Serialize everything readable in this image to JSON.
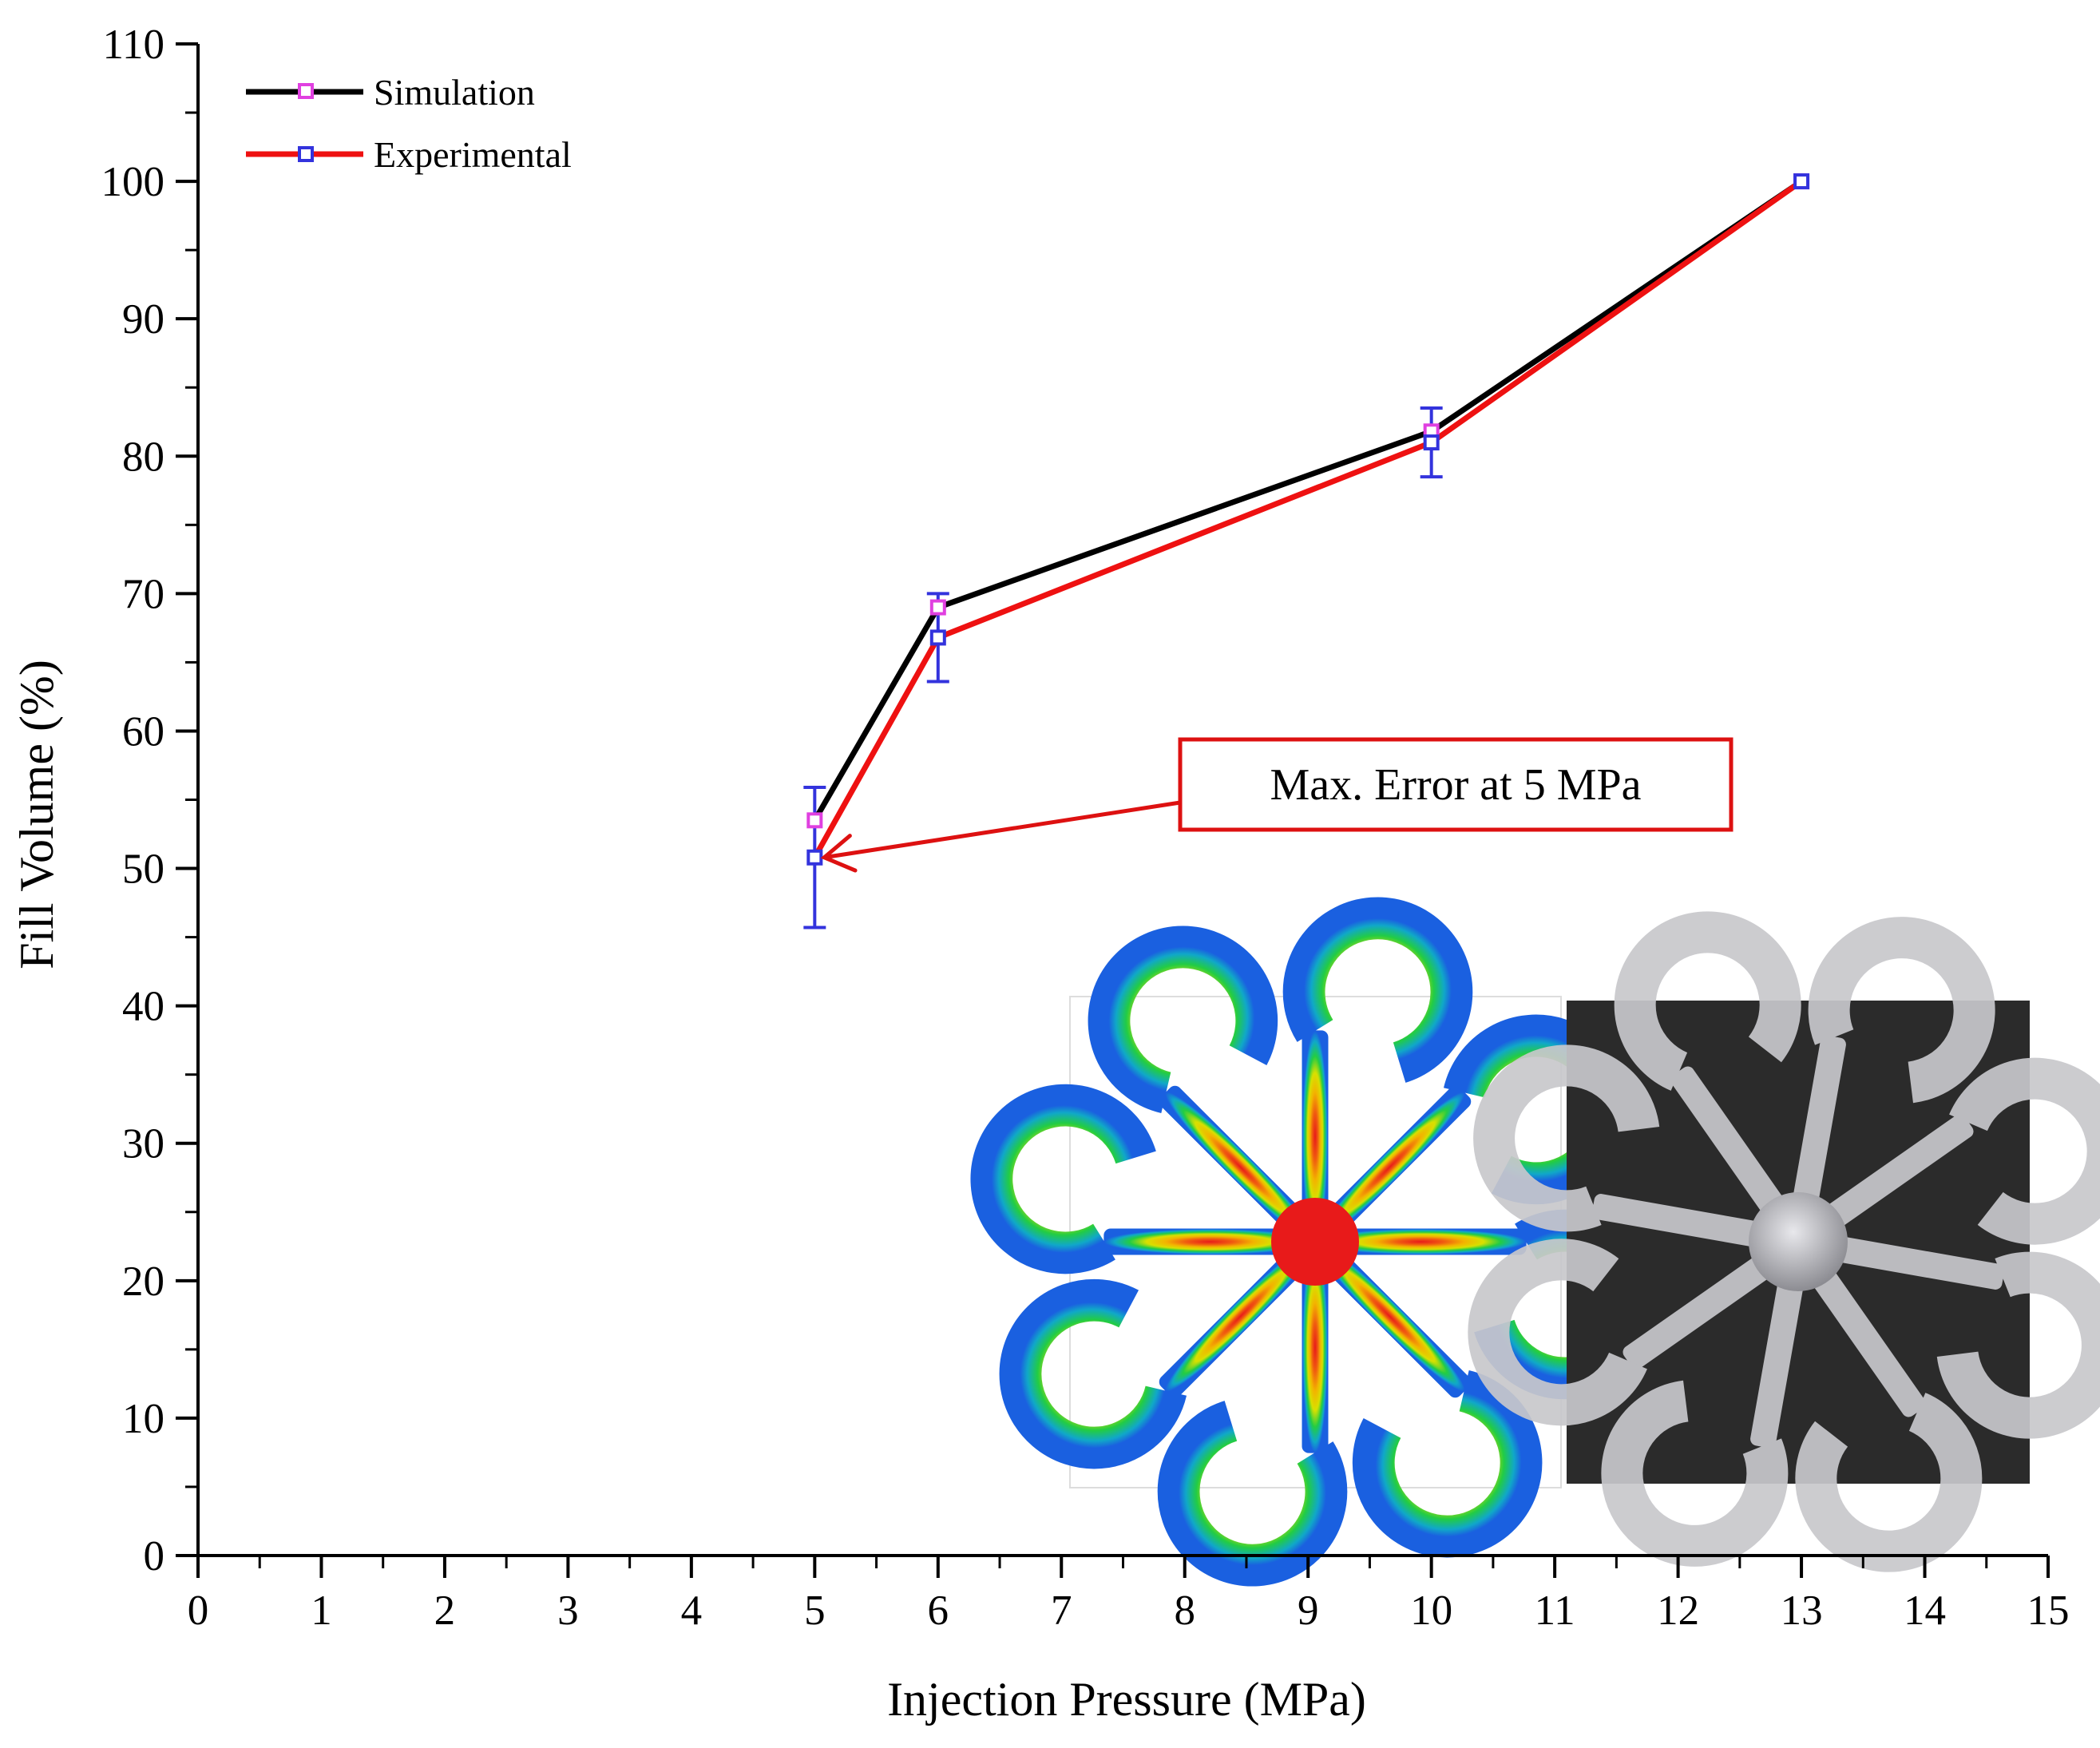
{
  "chart_data": {
    "type": "line",
    "title": "",
    "xlabel": "Injection Pressure (MPa)",
    "ylabel": "Fill Volume (%)",
    "xlim": [
      0,
      15
    ],
    "ylim": [
      0,
      110
    ],
    "xticks": [
      0,
      1,
      2,
      3,
      4,
      5,
      6,
      7,
      8,
      9,
      10,
      11,
      12,
      13,
      14,
      15
    ],
    "yticks": [
      0,
      10,
      20,
      30,
      40,
      50,
      60,
      70,
      80,
      90,
      100,
      110
    ],
    "grid": false,
    "legend_position": "top-left",
    "series": [
      {
        "name": "Simulation",
        "line_color": "#000000",
        "marker_color": "#e040e0",
        "x": [
          5,
          6,
          10,
          13
        ],
        "y": [
          53.5,
          69.0,
          81.8,
          100.0
        ]
      },
      {
        "name": "Experimental",
        "line_color": "#ee1111",
        "marker_color": "#3333dd",
        "x": [
          5,
          6,
          10,
          13
        ],
        "y": [
          50.8,
          66.8,
          81.0,
          100.0
        ],
        "error": [
          5.1,
          3.2,
          2.5,
          0
        ]
      }
    ],
    "annotation": {
      "text": "Max. Error at 5 MPa",
      "points_to_x": 5,
      "points_to_y": 50.8,
      "box_color": "#dd1111"
    },
    "inset_images": [
      {
        "description": "simulation-fill-contour",
        "colors": [
          "#e02020",
          "#f0a000",
          "#e0e000",
          "#20d040",
          "#1080e0"
        ]
      },
      {
        "description": "molded-part-photo",
        "colors": [
          "#2a2a2a",
          "#c8c8cc"
        ]
      }
    ]
  }
}
